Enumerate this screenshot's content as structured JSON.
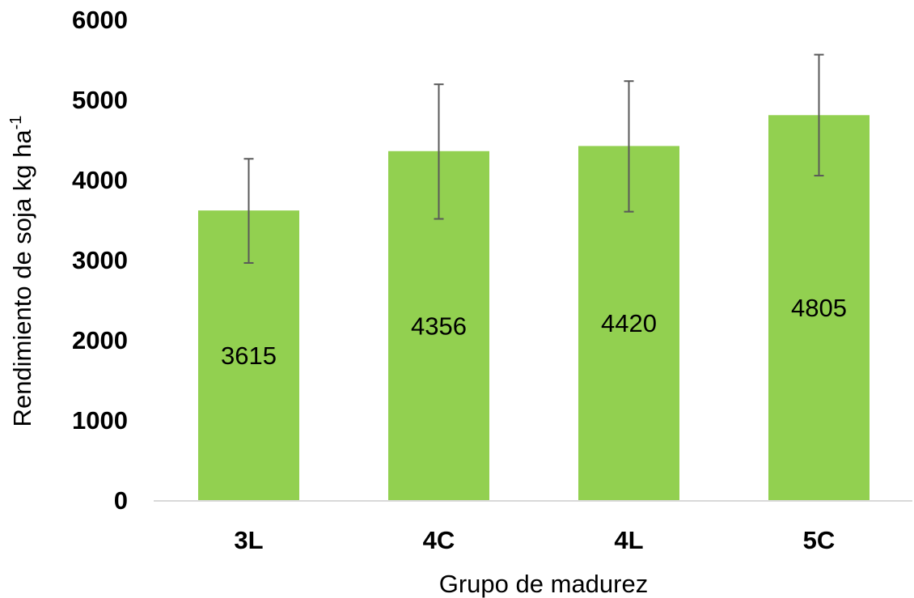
{
  "chart_data": {
    "type": "bar",
    "categories": [
      "3L",
      "4C",
      "4L",
      "5C"
    ],
    "values": [
      3615,
      4356,
      4420,
      4805
    ],
    "error_low": [
      2960,
      3510,
      3600,
      4050
    ],
    "error_high": [
      4260,
      5190,
      5230,
      5560
    ],
    "data_labels": [
      "3615",
      "4356",
      "4420",
      "4805"
    ],
    "xlabel": "Grupo de madurez",
    "ylabel": "Rendimiento de soja kg ha",
    "ylabel_superscript": "-1",
    "ylim": [
      0,
      6000
    ],
    "yticks": [
      "0",
      "1000",
      "2000",
      "3000",
      "4000",
      "5000",
      "6000"
    ],
    "grid": false,
    "bar_color": "#92D050",
    "error_color": "#595959",
    "axis_color": "#D9D9D9"
  }
}
